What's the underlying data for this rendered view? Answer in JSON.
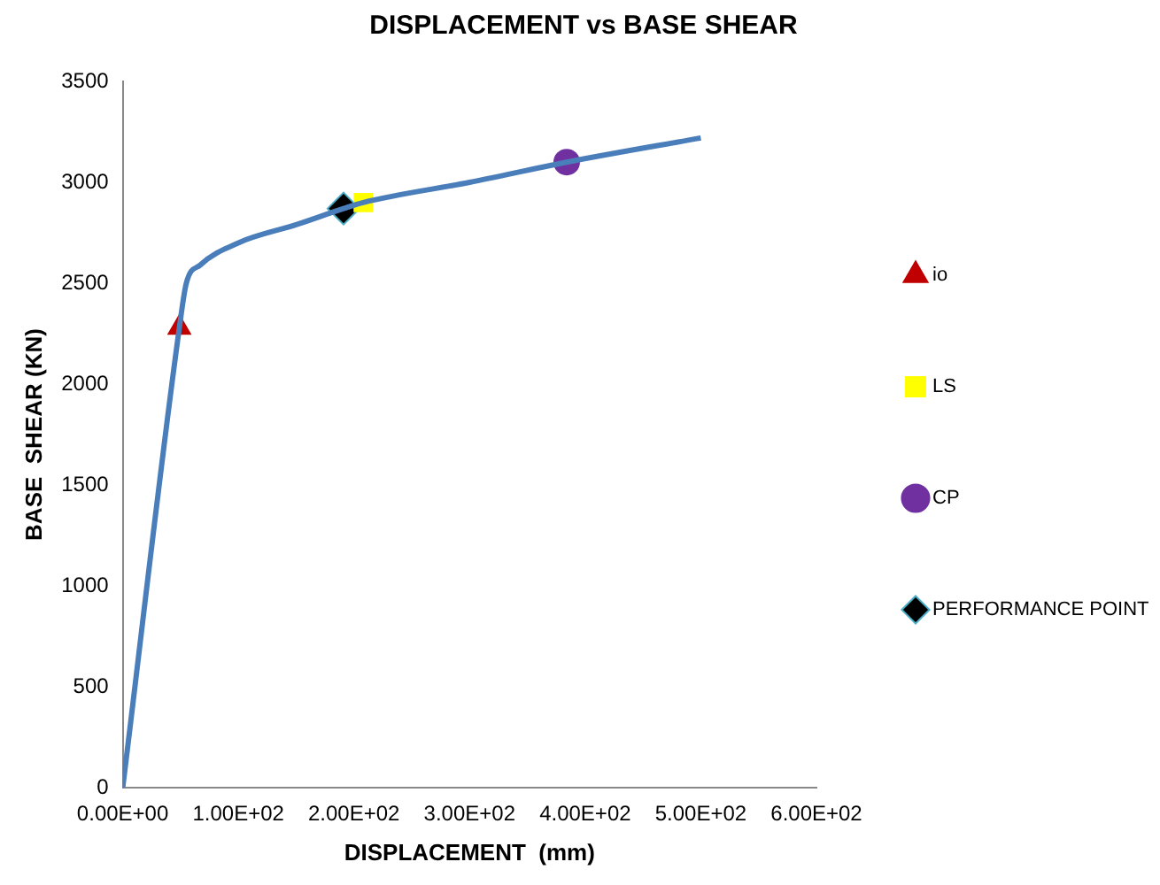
{
  "chart_data": {
    "type": "line",
    "title": "DISPLACEMENT vs BASE SHEAR",
    "xlabel": "DISPLACEMENT  (mm)",
    "ylabel": "BASE  SHEAR (KN)",
    "xlim": [
      0,
      600
    ],
    "xticks": [
      {
        "value": 0,
        "label": "0.00E+00"
      },
      {
        "value": 100,
        "label": "1.00E+02"
      },
      {
        "value": 200,
        "label": "2.00E+02"
      },
      {
        "value": 300,
        "label": "3.00E+02"
      },
      {
        "value": 400,
        "label": "4.00E+02"
      },
      {
        "value": 500,
        "label": "5.00E+02"
      },
      {
        "value": 600,
        "label": "6.00E+02"
      }
    ],
    "ylim": [
      0,
      3500
    ],
    "yticks": [
      0,
      500,
      1000,
      1500,
      2000,
      2500,
      3000,
      3500
    ],
    "grid": false,
    "legend": "right",
    "series": [
      {
        "color": "#4a7ebb",
        "x": [
          0,
          49,
          55,
          67,
          100,
          150,
          191,
          208,
          300,
          384,
          500
        ],
        "values": [
          0,
          2280,
          2500,
          2590,
          2700,
          2790,
          2870,
          2900,
          3000,
          3100,
          3220
        ],
        "marker": "none"
      },
      {
        "name": "io",
        "type": "scatter",
        "color": "#c00000",
        "x": [
          49
        ],
        "values": [
          2280
        ],
        "marker": "triangle"
      },
      {
        "name": "LS",
        "type": "scatter",
        "color": "#ffff00",
        "x": [
          208
        ],
        "values": [
          2900
        ],
        "marker": "square"
      },
      {
        "name": "CP",
        "type": "scatter",
        "color": "#7030a0",
        "x": [
          384
        ],
        "values": [
          3100
        ],
        "marker": "circle"
      },
      {
        "name": "PERFORMANCE POINT",
        "type": "scatter",
        "color": "#000000",
        "x": [
          191
        ],
        "values": [
          2870
        ],
        "marker": "diamond"
      }
    ]
  }
}
